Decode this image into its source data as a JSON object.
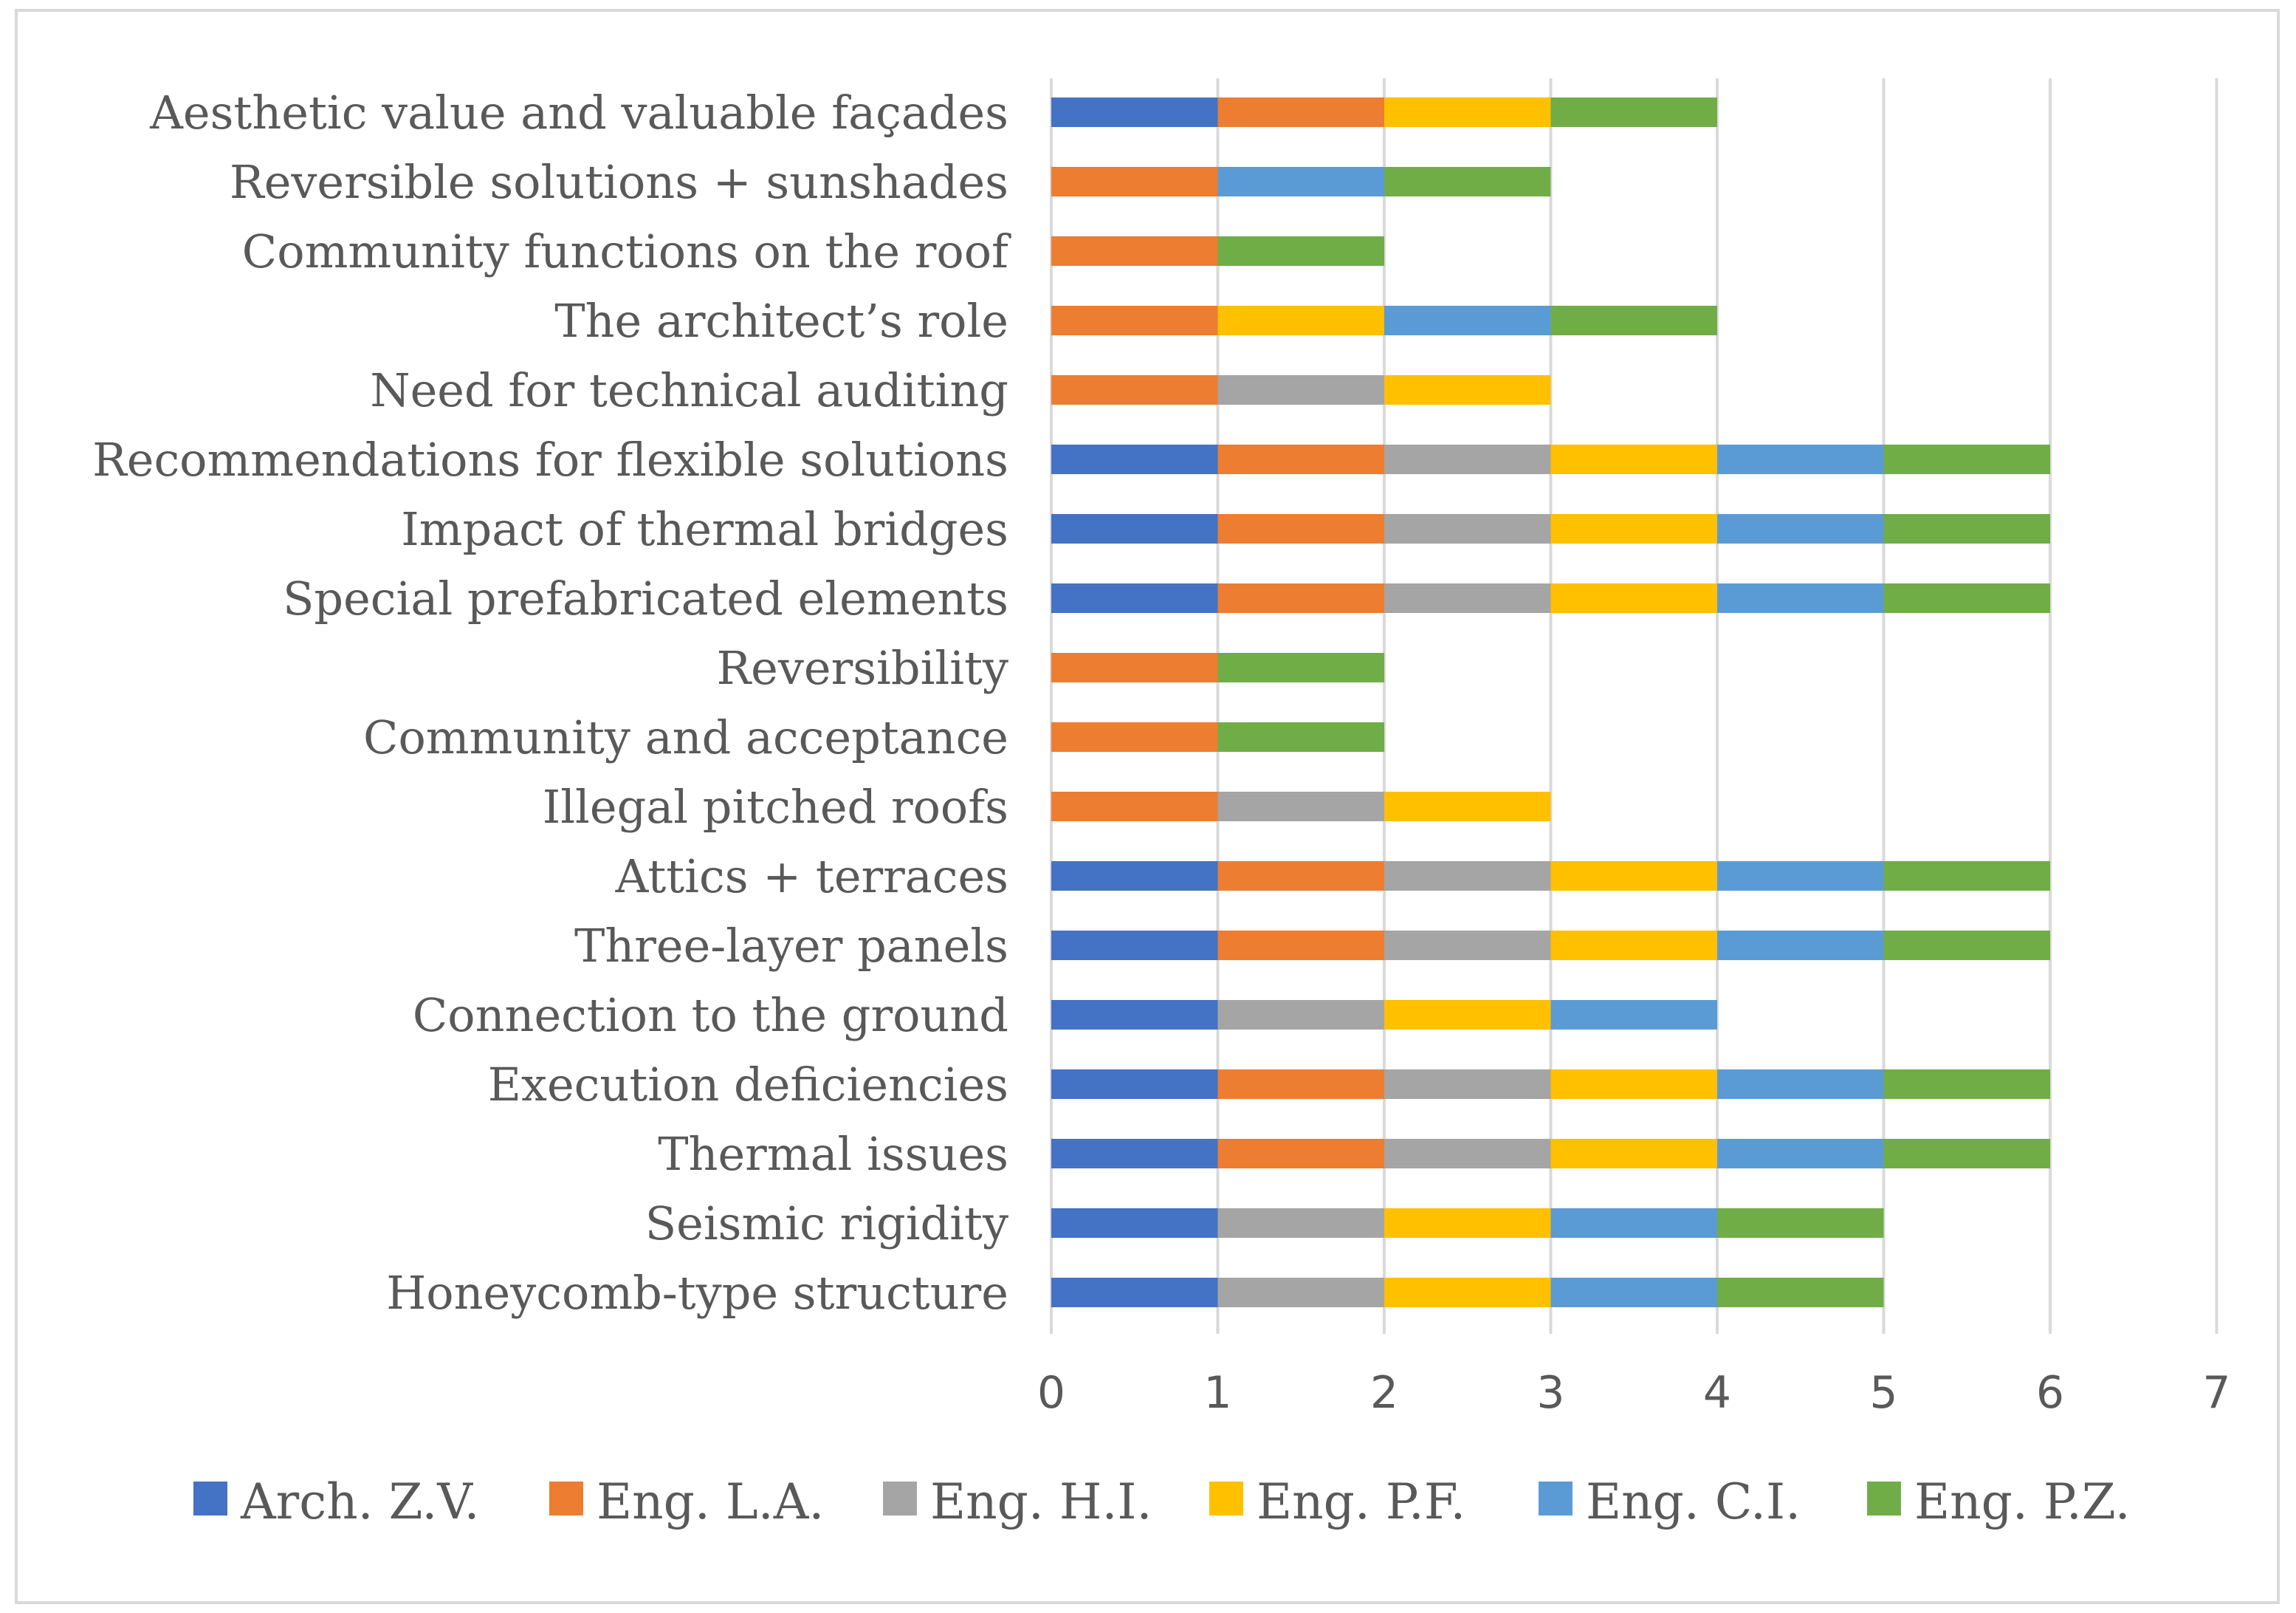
{
  "chart_data": {
    "type": "bar",
    "orientation": "horizontal",
    "stacked": true,
    "title": "",
    "xlabel": "",
    "ylabel": "",
    "xlim": [
      0,
      7
    ],
    "xticks": [
      "0",
      "1",
      "2",
      "3",
      "4",
      "5",
      "6",
      "7"
    ],
    "grid": true,
    "legend_position": "bottom",
    "categories": [
      "Aesthetic value and valuable façades",
      "Reversible solutions + sunshades",
      "Community functions on the roof",
      "The architect’s role",
      "Need for technical auditing",
      "Recommendations for flexible solutions",
      "Impact of thermal bridges",
      "Special prefabricated elements",
      "Reversibility",
      "Community and acceptance",
      "Illegal pitched roofs",
      "Attics + terraces",
      "Three-layer panels",
      "Connection to the ground",
      "Execution deficiencies",
      "Thermal issues",
      "Seismic rigidity",
      "Honeycomb-type structure"
    ],
    "series": [
      {
        "name": "Arch. Z.V.",
        "color": "#4472c4",
        "values": [
          1,
          0,
          0,
          0,
          0,
          1,
          1,
          1,
          0,
          0,
          0,
          1,
          1,
          1,
          1,
          1,
          1,
          1
        ]
      },
      {
        "name": "Eng. L.A.",
        "color": "#ed7d31",
        "values": [
          1,
          1,
          1,
          1,
          1,
          1,
          1,
          1,
          1,
          1,
          1,
          1,
          1,
          0,
          1,
          1,
          0,
          0
        ]
      },
      {
        "name": "Eng. H.I.",
        "color": "#a5a5a5",
        "values": [
          0,
          0,
          0,
          0,
          1,
          1,
          1,
          1,
          0,
          0,
          1,
          1,
          1,
          1,
          1,
          1,
          1,
          1
        ]
      },
      {
        "name": "Eng. P.F.",
        "color": "#ffc000",
        "values": [
          1,
          0,
          0,
          1,
          1,
          1,
          1,
          1,
          0,
          0,
          1,
          1,
          1,
          1,
          1,
          1,
          1,
          1
        ]
      },
      {
        "name": "Eng. C.I.",
        "color": "#5b9bd5",
        "values": [
          0,
          1,
          0,
          1,
          0,
          1,
          1,
          1,
          0,
          0,
          0,
          1,
          1,
          1,
          1,
          1,
          1,
          1
        ]
      },
      {
        "name": "Eng. P.Z.",
        "color": "#70ad47",
        "values": [
          1,
          1,
          1,
          1,
          0,
          1,
          1,
          1,
          1,
          1,
          0,
          1,
          1,
          0,
          1,
          1,
          1,
          1
        ]
      }
    ]
  }
}
